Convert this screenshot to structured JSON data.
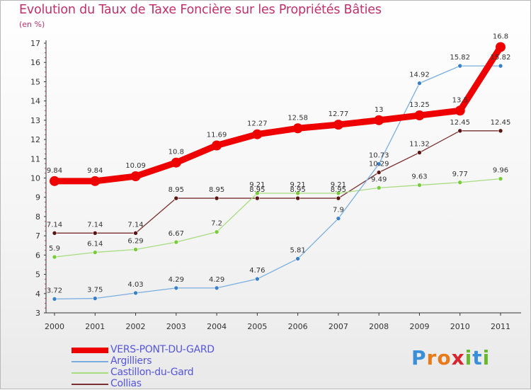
{
  "title": "Evolution du Taux de Taxe Foncière sur les Propriétés Bâties",
  "unit_label": "(en %)",
  "logo": {
    "letters": [
      "P",
      "r",
      "o",
      "x",
      "i",
      "t",
      "i"
    ],
    "colors": [
      "#3a8fd8",
      "#e87a1a",
      "#e87a1a",
      "#d8242c",
      "#6ab82e",
      "#3a8fd8",
      "#6ab82e"
    ]
  },
  "chart_data": {
    "type": "line",
    "title": "Evolution du Taux de Taxe Foncière sur les Propriétés Bâties",
    "ylabel": "(en %)",
    "xlabel": "",
    "x": [
      "2000",
      "2001",
      "2002",
      "2003",
      "2004",
      "2005",
      "2006",
      "2007",
      "2008",
      "2009",
      "2010",
      "2011"
    ],
    "ylim": [
      3,
      17
    ],
    "yticks": [
      3,
      4,
      5,
      6,
      7,
      8,
      9,
      10,
      11,
      12,
      13,
      14,
      15,
      16,
      17
    ],
    "grid": false,
    "legend_position": "bottom-left",
    "series": [
      {
        "name": "VERS-PONT-DU-GARD",
        "color": "#ee0000",
        "marker": "#ee0000",
        "emphasis": true,
        "values": [
          9.84,
          9.84,
          10.09,
          10.8,
          11.69,
          12.27,
          12.58,
          12.77,
          13,
          13.25,
          13.5,
          16.8
        ],
        "labels": [
          "9.84",
          "9.84",
          "10.09",
          "10.8",
          "11.69",
          "12.27",
          "12.58",
          "12.77",
          "13",
          "13.25",
          "13.5",
          "16.8"
        ]
      },
      {
        "name": "Argilliers",
        "color": "#7aaee0",
        "marker": "#3a80c8",
        "values": [
          3.72,
          3.75,
          4.03,
          4.29,
          4.29,
          4.76,
          5.81,
          7.9,
          10.73,
          14.92,
          15.82,
          15.82
        ],
        "labels": [
          "3.72",
          "3.75",
          "4.03",
          "4.29",
          "4.29",
          "4.76",
          "5.81",
          "7.9",
          "10.73",
          "14.92",
          "15.82",
          "15.82"
        ]
      },
      {
        "name": "Castillon-du-Gard",
        "color": "#a8dc80",
        "marker": "#78cc3c",
        "values": [
          5.9,
          6.14,
          6.29,
          6.67,
          7.2,
          9.21,
          9.21,
          9.21,
          9.49,
          9.63,
          9.77,
          9.96
        ],
        "labels": [
          "5.9",
          "6.14",
          "6.29",
          "6.67",
          "7.2",
          "9.21",
          "9.21",
          "9.21",
          "9.49",
          "9.63",
          "9.77",
          "9.96"
        ]
      },
      {
        "name": "Collias",
        "color": "#7a3030",
        "marker": "#5a1414",
        "values": [
          7.14,
          7.14,
          7.14,
          8.95,
          8.95,
          8.95,
          8.95,
          8.95,
          10.29,
          11.32,
          12.45,
          12.45
        ],
        "labels": [
          "7.14",
          "7.14",
          "7.14",
          "8.95",
          "8.95",
          "8.95",
          "8.95",
          "8.95",
          "10.29",
          "11.32",
          "12.45",
          "12.45"
        ]
      }
    ]
  }
}
